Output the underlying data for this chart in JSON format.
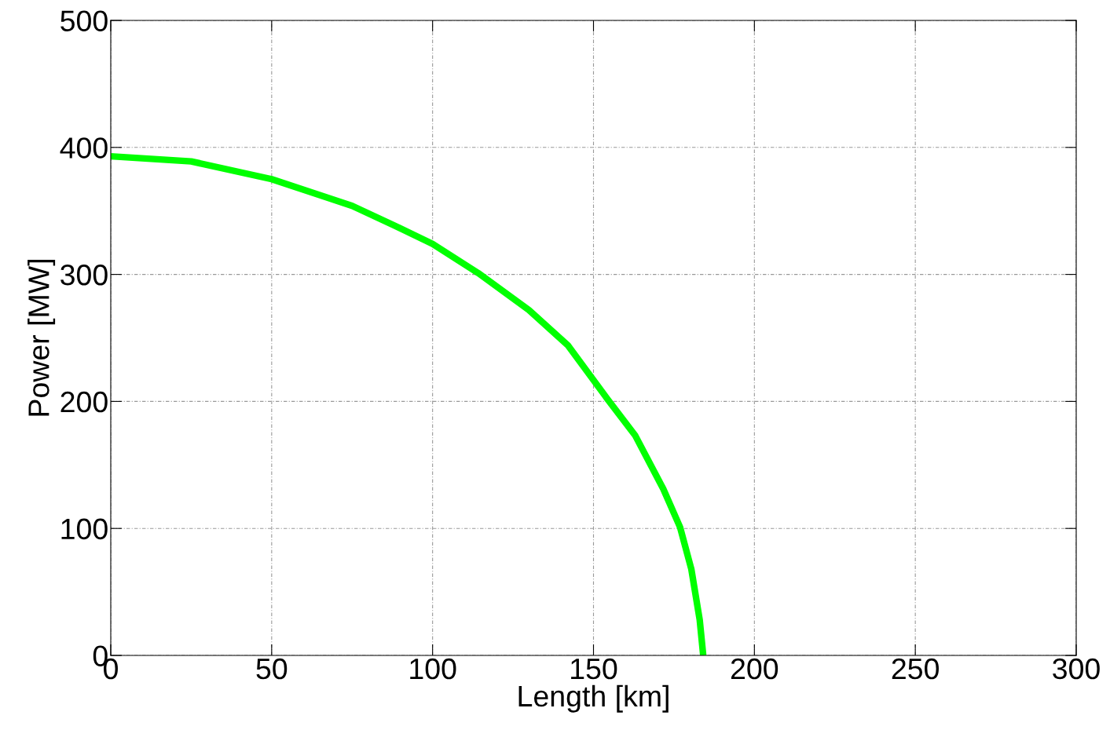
{
  "chart_data": {
    "type": "line",
    "xlabel": "Length [km]",
    "ylabel": "Power [MW]",
    "x": [
      0,
      25,
      50,
      75,
      87.7,
      100,
      114.2,
      129.9,
      142.1,
      154.3,
      163.0,
      171.7,
      176.9,
      180.4,
      183.0,
      184.1
    ],
    "series": [
      {
        "color": "#00ff00",
        "values": [
          393,
          389,
          375,
          354,
          339,
          324,
          301,
          272,
          244,
          202,
          173,
          131,
          101,
          68,
          28,
          0
        ]
      }
    ],
    "xlim": [
      0,
      300
    ],
    "xticks": [
      0,
      50,
      100,
      150,
      200,
      250,
      300
    ],
    "ylim": [
      0,
      500
    ],
    "yticks": [
      0,
      100,
      200,
      300,
      400,
      500
    ],
    "grid": true,
    "legend": false,
    "marker": "none",
    "line_style": "solid"
  }
}
